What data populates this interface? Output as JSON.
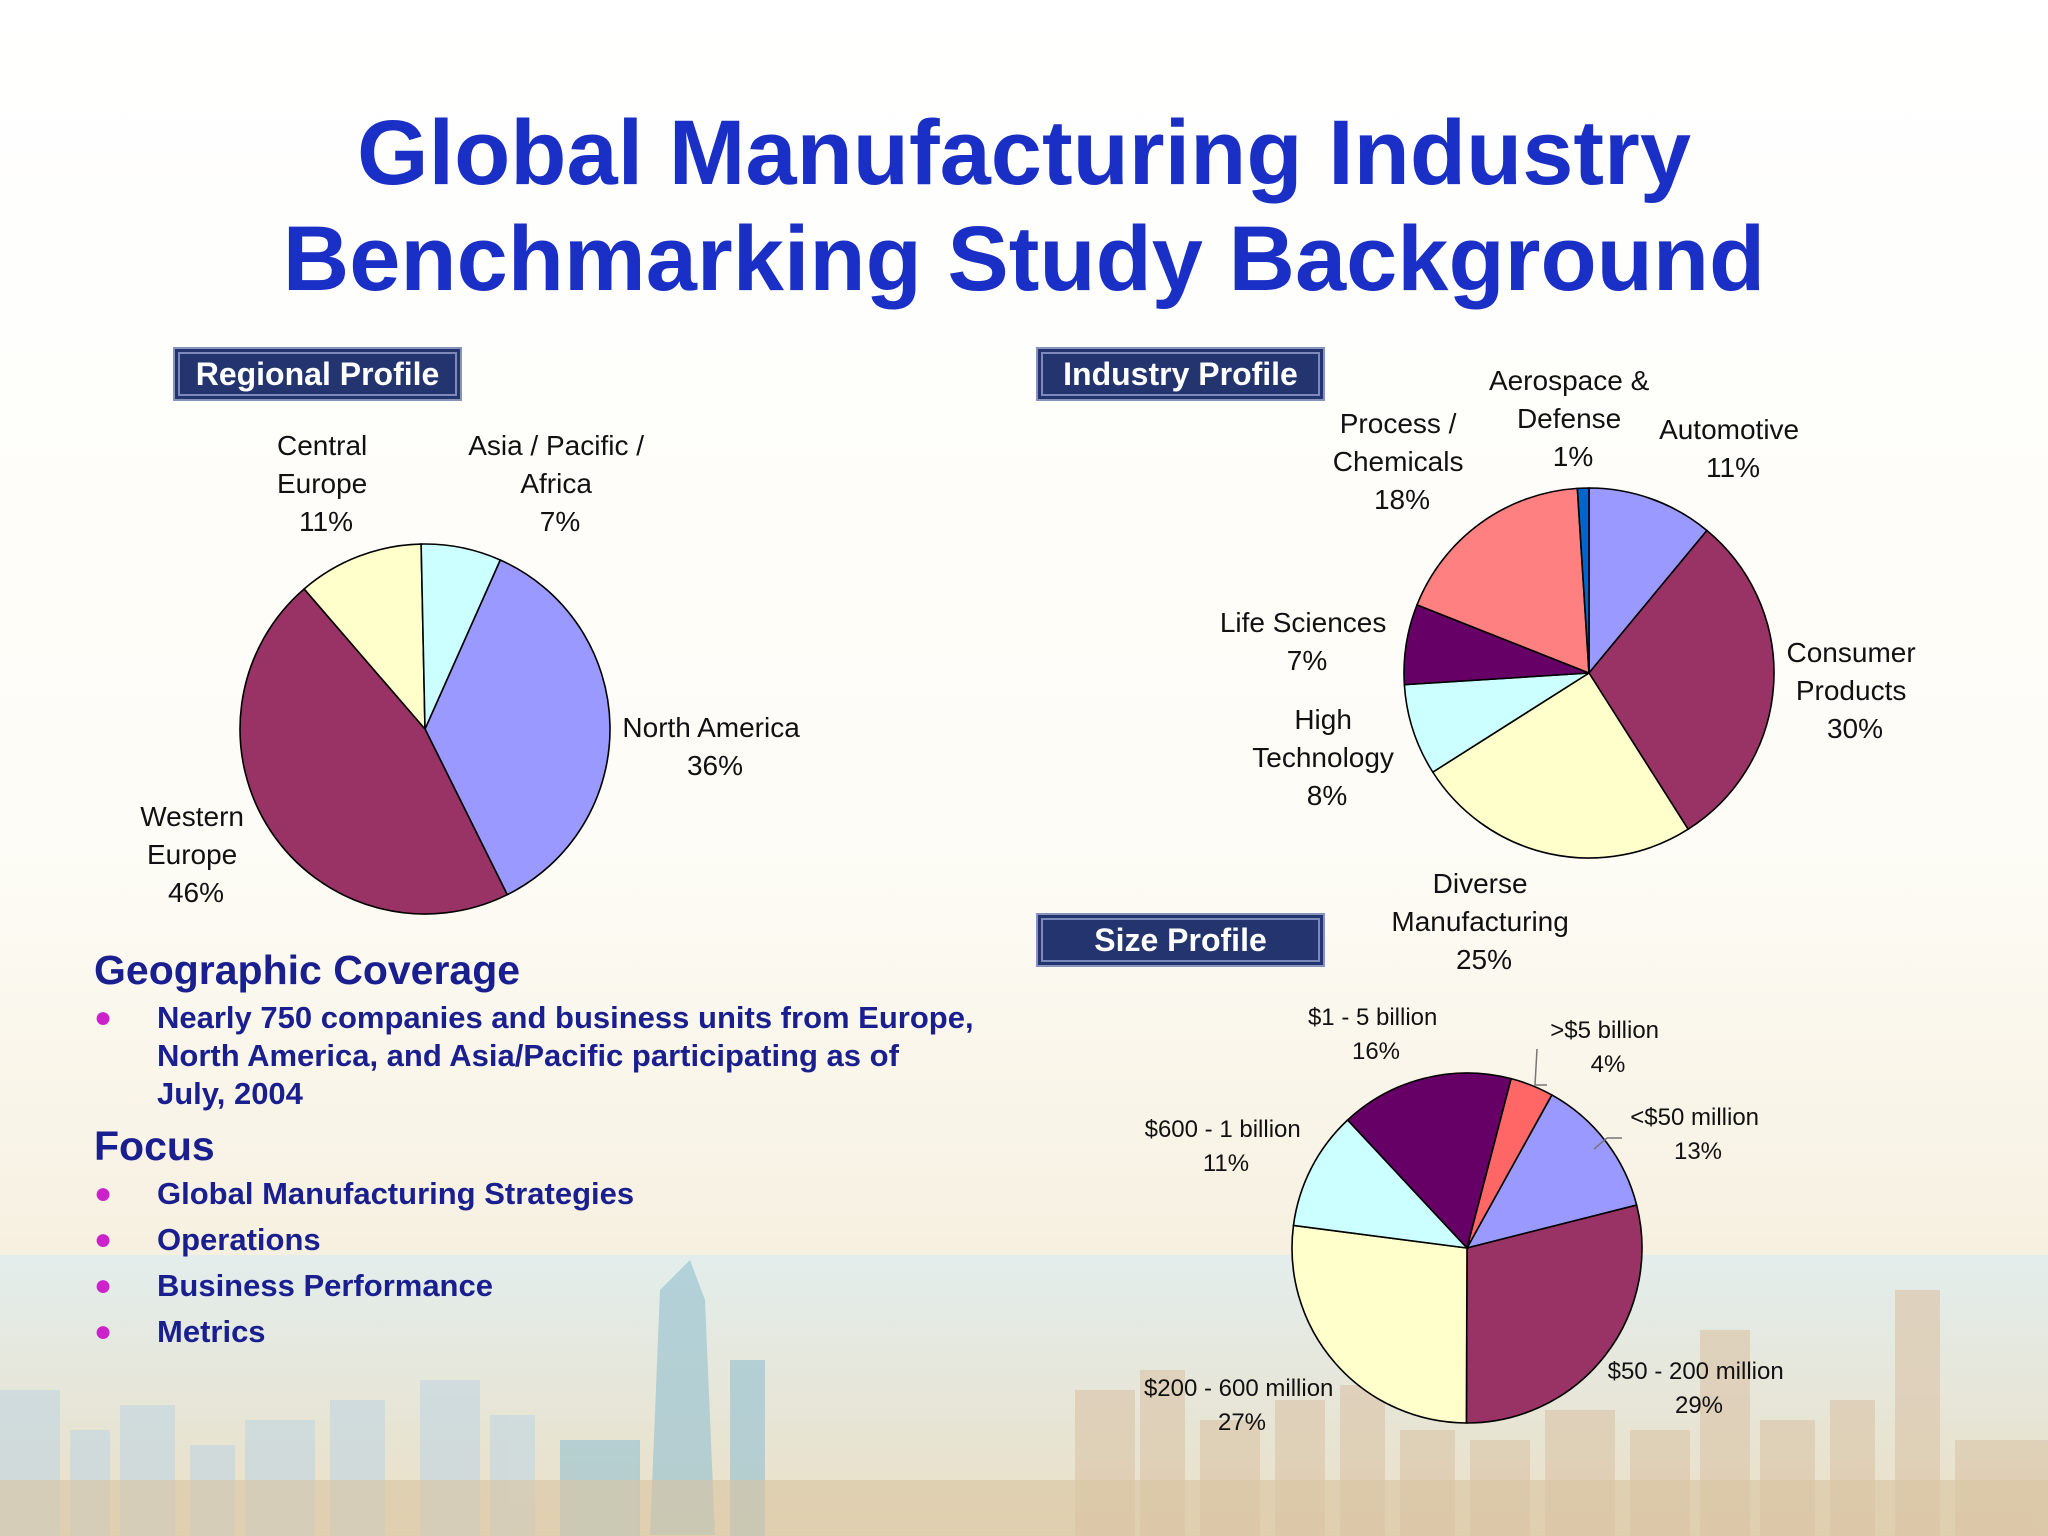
{
  "title_line1": "Global Manufacturing Industry",
  "title_line2": "Benchmarking Study Background",
  "geographic_coverage": {
    "heading": "Geographic Coverage",
    "items": [
      "Nearly 750 companies and business units from Europe, North America, and Asia/Pacific participating as of July, 2004"
    ]
  },
  "focus": {
    "heading": "Focus",
    "items": [
      "Global Manufacturing Strategies",
      "Operations",
      "Business Performance",
      "Metrics"
    ]
  },
  "colors": {
    "title": "#1a2fc6",
    "bullet_text": "#1a1f8f",
    "bullet_dot": "#cc22cc",
    "tag_bg": "#24346e"
  },
  "chart_data": [
    {
      "type": "pie",
      "title": "Regional Profile",
      "series": [
        {
          "label": "North America 36%",
          "value": 36,
          "color": "#9999ff"
        },
        {
          "label": "Western Europe 46%",
          "value": 46,
          "color": "#993366"
        },
        {
          "label": "Central Europe 11%",
          "value": 11,
          "color": "#ffffcc"
        },
        {
          "label": "Asia / Pacific / Africa 7%",
          "value": 7,
          "color": "#ccffff"
        }
      ]
    },
    {
      "type": "pie",
      "title": "Industry Profile",
      "series": [
        {
          "label": "Automotive 11%",
          "value": 11,
          "color": "#9999ff"
        },
        {
          "label": "Consumer Products 30%",
          "value": 30,
          "color": "#993366"
        },
        {
          "label": "Diverse Manufacturing 25%",
          "value": 25,
          "color": "#ffffcc"
        },
        {
          "label": "High Technology 8%",
          "value": 8,
          "color": "#ccffff"
        },
        {
          "label": "Life Sciences 7%",
          "value": 7,
          "color": "#660066"
        },
        {
          "label": "Process / Chemicals 18%",
          "value": 18,
          "color": "#ff8080"
        },
        {
          "label": "Aerospace & Defense 1%",
          "value": 1,
          "color": "#0066cc"
        }
      ]
    },
    {
      "type": "pie",
      "title": "Size Profile",
      "series": [
        {
          "label": "<$50 million 13%",
          "value": 13,
          "color": "#9999ff"
        },
        {
          "label": "$50 - 200 million 29%",
          "value": 29,
          "color": "#993366"
        },
        {
          "label": "$200 - 600 million 27%",
          "value": 27,
          "color": "#ffffcc"
        },
        {
          "label": "$600 - 1 billion 11%",
          "value": 11,
          "color": "#ccffff"
        },
        {
          "label": "$1 - 5 billion 16%",
          "value": 16,
          "color": "#660066"
        },
        {
          "label": ">$5 billion 4%",
          "value": 4,
          "color": "#ff6666"
        }
      ]
    }
  ],
  "pie_labels": {
    "regional": {
      "central_europe": [
        "Central",
        "Europe",
        "11%"
      ],
      "asia_pacific": [
        "Asia / Pacific /",
        "Africa",
        "7%"
      ],
      "north_america": [
        "North America",
        "36%"
      ],
      "western_europe": [
        "Western",
        "Europe",
        "46%"
      ]
    },
    "industry": {
      "aerospace": [
        "Aerospace &",
        "Defense",
        "1%"
      ],
      "process": [
        "Process /",
        "Chemicals",
        "18%"
      ],
      "automotive": [
        "Automotive",
        "11%"
      ],
      "consumer": [
        "Consumer",
        "Products",
        "30%"
      ],
      "life_sciences": [
        "Life Sciences",
        "7%"
      ],
      "high_tech": [
        "High",
        "Technology",
        "8%"
      ],
      "diverse": [
        "Diverse",
        "Manufacturing",
        "25%"
      ]
    },
    "size": {
      "b1_5": [
        "$1 - 5 billion",
        "16%"
      ],
      "gt5b": [
        ">$5 billion",
        "4%"
      ],
      "lt50m": [
        "<$50 million",
        "13%"
      ],
      "m600_1b": [
        "$600 - 1 billion",
        "11%"
      ],
      "m50_200": [
        "$50 - 200 million",
        "29%"
      ],
      "m200_600": [
        "$200 - 600 million",
        "27%"
      ]
    }
  }
}
